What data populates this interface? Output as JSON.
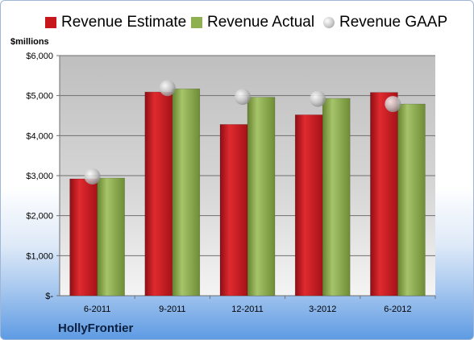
{
  "chart_data": {
    "type": "bar",
    "title": "",
    "unit_label": "$millions",
    "categories": [
      "6-2011",
      "9-2011",
      "12-2011",
      "3-2012",
      "6-2012"
    ],
    "series": [
      {
        "name": "Revenue Estimate",
        "kind": "bar",
        "color": "#c8161d",
        "values": [
          2920,
          5090,
          4280,
          4520,
          5080
        ]
      },
      {
        "name": "Revenue Actual",
        "kind": "bar",
        "color": "#8fb04f",
        "values": [
          2940,
          5170,
          4960,
          4930,
          4790
        ]
      },
      {
        "name": "Revenue GAAP",
        "kind": "marker",
        "color": "#b8b8b8",
        "values": [
          2980,
          5190,
          4970,
          4920,
          4790
        ]
      }
    ],
    "ylim": [
      0,
      6000
    ],
    "yticks": [
      0,
      1000,
      2000,
      3000,
      4000,
      5000,
      6000
    ],
    "ytick_labels": [
      "$-",
      "$1,000",
      "$2,000",
      "$3,000",
      "$4,000",
      "$5,000",
      "$6,000"
    ],
    "grid": true,
    "legend_position": "top"
  },
  "company": "HollyFrontier"
}
